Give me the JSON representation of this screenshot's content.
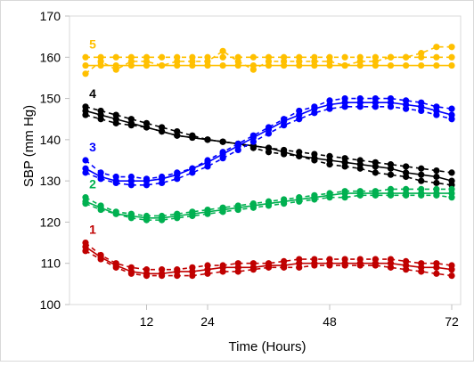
{
  "chart_data": {
    "type": "line",
    "ylabel": "SBP (mm Hg)",
    "xlabel": "Time (Hours)",
    "ylim": [
      100,
      170
    ],
    "yticks": [
      100,
      110,
      120,
      130,
      140,
      150,
      160,
      170
    ],
    "xlim": [
      0,
      72
    ],
    "xticks": [
      12,
      24,
      48,
      72
    ],
    "x": [
      0,
      3,
      6,
      9,
      12,
      15,
      18,
      21,
      24,
      27,
      30,
      33,
      36,
      39,
      42,
      45,
      48,
      51,
      54,
      57,
      60,
      63,
      66,
      69,
      72
    ],
    "grid": false,
    "groups": [
      {
        "label": "5",
        "color": "#FFC000",
        "series": [
          {
            "values": [
              160,
              160,
              160,
              160,
              160,
              160,
              160,
              160,
              160,
              160,
              160,
              160,
              160,
              160,
              160,
              160,
              160,
              160,
              160,
              160,
              160,
              160,
              160,
              160,
              160
            ]
          },
          {
            "values": [
              158,
              158,
              158,
              158,
              158,
              158,
              158,
              158,
              158,
              158,
              158,
              158,
              158,
              158,
              158,
              158,
              158,
              158,
              158,
              158,
              158,
              158,
              158,
              158,
              158
            ]
          },
          {
            "values": [
              156,
              159,
              157,
              159,
              159,
              158,
              159,
              159,
              159,
              161.5,
              159,
              157,
              159,
              159,
              159,
              159,
              159,
              158,
              159,
              159,
              160,
              160,
              161,
              162.5,
              162.5
            ]
          }
        ]
      },
      {
        "label": "4",
        "color": "#000000",
        "series": [
          {
            "values": [
              148,
              147,
              146,
              145,
              144,
              143,
              142,
              141,
              140,
              139.5,
              139,
              138.5,
              138,
              137.5,
              137,
              136.5,
              136,
              135.5,
              135,
              134.5,
              134,
              133.5,
              133,
              132.5,
              132
            ]
          },
          {
            "values": [
              147,
              146,
              145,
              144,
              143,
              142,
              141,
              140.5,
              140,
              139.5,
              139,
              138.5,
              138,
              137,
              136,
              135.5,
              135,
              134.5,
              134,
              133.5,
              133,
              132,
              131.5,
              131,
              130
            ]
          },
          {
            "values": [
              146,
              145,
              144,
              143.5,
              143,
              142,
              141,
              140.5,
              140,
              139.5,
              139,
              138,
              137,
              136.5,
              136,
              135,
              134,
              133.5,
              133,
              132,
              131.5,
              131,
              130,
              129.5,
              129
            ]
          }
        ]
      },
      {
        "label": "3",
        "color": "#0000FF",
        "series": [
          {
            "values": [
              135,
              132,
              131,
              131,
              130.5,
              131,
              132,
              133,
              135,
              137,
              139,
              141,
              143,
              145,
              147,
              148,
              149.5,
              150,
              150,
              150,
              150,
              149.5,
              149,
              148,
              147.5
            ]
          },
          {
            "values": [
              133,
              131,
              130,
              130,
              130,
              130.5,
              131.5,
              133,
              134.5,
              136.5,
              138.5,
              140.5,
              142.5,
              144.5,
              146,
              147.5,
              148.5,
              149,
              149,
              149,
              149,
              148.5,
              148,
              147,
              146
            ]
          },
          {
            "values": [
              132,
              130.5,
              129.5,
              129,
              129,
              129.5,
              130.5,
              132,
              133.5,
              135.5,
              137.5,
              139.5,
              141.5,
              143.5,
              145,
              146.5,
              147.5,
              148,
              148,
              148,
              148,
              147.5,
              147,
              146,
              145
            ]
          }
        ]
      },
      {
        "label": "2",
        "color": "#00B050",
        "series": [
          {
            "values": [
              126,
              124,
              122.5,
              122,
              121.5,
              121.5,
              122,
              122.5,
              123,
              123.5,
              124,
              124.5,
              125,
              125.5,
              126,
              126.5,
              127,
              127.5,
              127.5,
              127.5,
              128,
              128,
              128,
              128,
              128
            ]
          },
          {
            "values": [
              125,
              123.5,
              122,
              121.5,
              121,
              121,
              121.5,
              122,
              122.5,
              123,
              123.5,
              124,
              124.5,
              125,
              125.5,
              126,
              126.5,
              127,
              127,
              127,
              127,
              127,
              127,
              127,
              127
            ]
          },
          {
            "values": [
              124.5,
              123,
              122,
              121,
              120.5,
              120.5,
              121,
              121.5,
              122,
              122.5,
              123,
              123.5,
              124,
              124.5,
              125,
              125.5,
              126,
              126,
              126.5,
              126.5,
              126.5,
              126.5,
              126.5,
              126.5,
              126
            ]
          }
        ]
      },
      {
        "label": "1",
        "color": "#C00000",
        "series": [
          {
            "values": [
              115,
              112,
              110,
              109,
              108.5,
              108.5,
              108.5,
              109,
              109.5,
              109.5,
              110,
              110,
              110,
              110.5,
              111,
              111,
              111,
              111,
              111,
              111,
              111,
              110.5,
              110,
              110,
              109.5
            ]
          },
          {
            "values": [
              114,
              111.5,
              109.5,
              108,
              107.5,
              107.5,
              108,
              108,
              108.5,
              109,
              109,
              109,
              109.5,
              109.5,
              110,
              110,
              110,
              110,
              110,
              110,
              110,
              109.5,
              109,
              109,
              108.5
            ]
          },
          {
            "values": [
              113,
              111,
              109,
              107.5,
              107,
              107,
              107,
              107,
              107.5,
              108,
              108,
              108.5,
              109,
              109,
              109,
              109.5,
              109.5,
              109.5,
              109.5,
              109.5,
              109,
              108.5,
              108,
              107.5,
              107
            ]
          }
        ]
      }
    ]
  }
}
